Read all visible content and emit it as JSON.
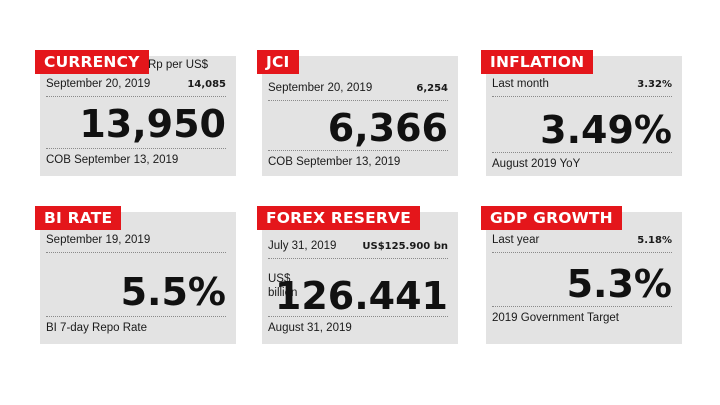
{
  "cards": {
    "currency": {
      "tag": "CURRENCY",
      "unit": "Rp per US$",
      "date": "September 20, 2019",
      "prev_value": "14,085",
      "value": "13,950",
      "footer": "COB September 13, 2019"
    },
    "jci": {
      "tag": "JCI",
      "date": "September 20, 2019",
      "prev_value": "6,254",
      "value": "6,366",
      "footer": "COB September 13, 2019"
    },
    "inflation": {
      "tag": "INFLATION",
      "date": "Last month",
      "prev_value": "3.32%",
      "value": "3.49%",
      "footer": "August 2019 YoY"
    },
    "bi_rate": {
      "tag": "BI RATE",
      "date": "September 19, 2019",
      "value": "5.5%",
      "footer": "BI 7-day Repo Rate"
    },
    "forex": {
      "tag": "FOREX RESERVE",
      "date": "July 31, 2019",
      "prev_value": "US$125.900 bn",
      "unit": "US$ billion",
      "value": "126.441",
      "footer": "August 31, 2019"
    },
    "gdp": {
      "tag": "GDP GROWTH",
      "date": "Last year",
      "prev_value": "5.18%",
      "value": "5.3%",
      "footer": "2019 Government Target"
    }
  },
  "colors": {
    "tag_red": "#e4161b",
    "card_bg": "#e3e3e3"
  }
}
